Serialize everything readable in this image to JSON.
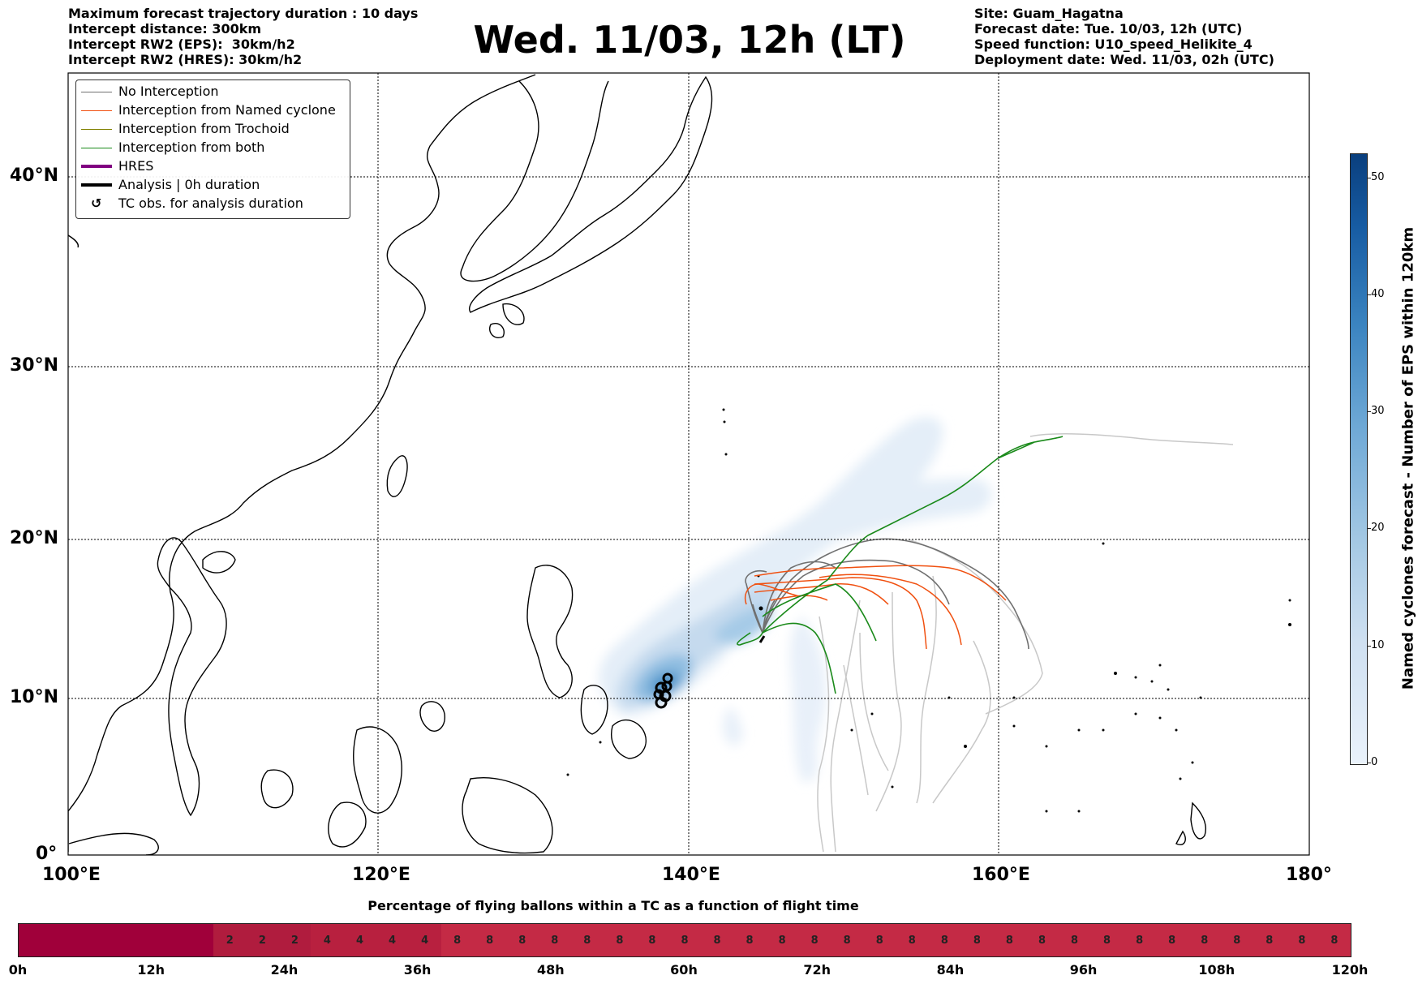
{
  "header_left": [
    "Maximum forecast trajectory duration : 10 days",
    "Intercept distance: 300km",
    "Intercept RW2 (EPS):  30km/h2",
    "Intercept RW2 (HRES): 30km/h2"
  ],
  "title": "Wed. 11/03, 12h (LT)",
  "header_right": [
    "Site: Guam_Hagatna",
    "Forecast date: Tue. 10/03, 12h (UTC)",
    "Speed function: U10_speed_Helikite_4",
    "Deployment date: Wed. 11/03, 02h (UTC)"
  ],
  "map": {
    "lat_labels": [
      "40°N",
      "30°N",
      "20°N",
      "10°N",
      "0°"
    ],
    "lat_values": [
      40,
      30,
      20,
      10,
      0
    ],
    "lon_labels": [
      "100°E",
      "120°E",
      "140°E",
      "160°E",
      "180°"
    ],
    "lon_values": [
      100,
      120,
      140,
      160,
      180
    ],
    "lat_range": [
      0,
      45.5
    ],
    "lon_range": [
      100,
      180
    ]
  },
  "legend": [
    {
      "label": "No Interception",
      "color": "#707070",
      "kind": "thin"
    },
    {
      "label": "Interception from Named cyclone",
      "color": "#f05010",
      "kind": "thin"
    },
    {
      "label": "Interception from Trochoid",
      "color": "#808000",
      "kind": "thin"
    },
    {
      "label": "Interception from both",
      "color": "#1a8a1a",
      "kind": "thin"
    },
    {
      "label": "HRES",
      "color": "#800080",
      "kind": "thick"
    },
    {
      "label": "Analysis | 0h duration",
      "color": "#000000",
      "kind": "thick"
    },
    {
      "label": "TC obs. for analysis duration",
      "color": "#000000",
      "kind": "symbol",
      "symbol": "↺"
    }
  ],
  "colorbar": {
    "label": "Named cyclones forecast - Number of EPS within 120km",
    "ticks": [
      "0",
      "10",
      "20",
      "30",
      "40",
      "50"
    ],
    "tick_values": [
      0,
      10,
      20,
      30,
      40,
      50
    ],
    "max": 52
  },
  "timeline": {
    "title": "Percentage of flying ballons within a TC as a function of flight time",
    "labels": [
      "0h",
      "12h",
      "24h",
      "36h",
      "48h",
      "60h",
      "72h",
      "84h",
      "96h",
      "108h",
      "120h"
    ],
    "segments": [
      {
        "value": "",
        "hours": 18,
        "color": "#a0003a"
      },
      {
        "value": "2",
        "hours": 3,
        "color": "#b01c3e"
      },
      {
        "value": "2",
        "hours": 3,
        "color": "#b01c3e"
      },
      {
        "value": "2",
        "hours": 3,
        "color": "#b01c3e"
      },
      {
        "value": "4",
        "hours": 3,
        "color": "#b8203f"
      },
      {
        "value": "4",
        "hours": 3,
        "color": "#b8203f"
      },
      {
        "value": "4",
        "hours": 3,
        "color": "#b8203f"
      },
      {
        "value": "4",
        "hours": 3,
        "color": "#b8203f"
      },
      {
        "value": "8",
        "hours": 3,
        "color": "#c42a45"
      },
      {
        "value": "8",
        "hours": 3,
        "color": "#c42a45"
      },
      {
        "value": "8",
        "hours": 3,
        "color": "#c42a45"
      },
      {
        "value": "8",
        "hours": 3,
        "color": "#c42a45"
      },
      {
        "value": "8",
        "hours": 3,
        "color": "#c42a45"
      },
      {
        "value": "8",
        "hours": 3,
        "color": "#c42a45"
      },
      {
        "value": "8",
        "hours": 3,
        "color": "#c42a45"
      },
      {
        "value": "8",
        "hours": 3,
        "color": "#c42a45"
      },
      {
        "value": "8",
        "hours": 3,
        "color": "#c42a45"
      },
      {
        "value": "8",
        "hours": 3,
        "color": "#c42a45"
      },
      {
        "value": "8",
        "hours": 3,
        "color": "#c42a45"
      },
      {
        "value": "8",
        "hours": 3,
        "color": "#c42a45"
      },
      {
        "value": "8",
        "hours": 3,
        "color": "#c42a45"
      },
      {
        "value": "8",
        "hours": 3,
        "color": "#c42a45"
      },
      {
        "value": "8",
        "hours": 3,
        "color": "#c42a45"
      },
      {
        "value": "8",
        "hours": 3,
        "color": "#c42a45"
      },
      {
        "value": "8",
        "hours": 3,
        "color": "#c42a45"
      },
      {
        "value": "8",
        "hours": 3,
        "color": "#c42a45"
      },
      {
        "value": "8",
        "hours": 3,
        "color": "#c42a45"
      },
      {
        "value": "8",
        "hours": 3,
        "color": "#c42a45"
      },
      {
        "value": "8",
        "hours": 3,
        "color": "#c42a45"
      },
      {
        "value": "8",
        "hours": 3,
        "color": "#c42a45"
      },
      {
        "value": "8",
        "hours": 3,
        "color": "#c42a45"
      },
      {
        "value": "8",
        "hours": 3,
        "color": "#c42a45"
      },
      {
        "value": "8",
        "hours": 3,
        "color": "#c42a45"
      },
      {
        "value": "8",
        "hours": 3,
        "color": "#c42a45"
      },
      {
        "value": "8",
        "hours": 3,
        "color": "#c42a45"
      },
      {
        "value": "8",
        "hours": 3,
        "color": "#c42a45"
      }
    ]
  }
}
